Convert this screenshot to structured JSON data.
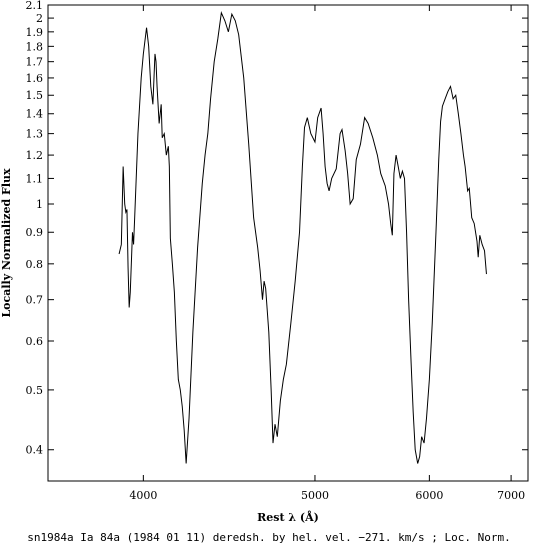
{
  "chart_data": {
    "type": "line",
    "xlabel": "Rest λ (Å)",
    "ylabel": "Locally Normalized Flux",
    "caption": "sn1984a Ia 84a (1984 01 11) deredsh. by hel. vel.  −271. km/s ;  Loc. Norm.",
    "x_scale": "reciprocal",
    "y_scale": "log",
    "xlim": [
      3600,
      7250
    ],
    "ylim": [
      0.356,
      2.1
    ],
    "x_ticks": [
      4000,
      5000,
      6000,
      7000
    ],
    "x_tick_labels": [
      "4000",
      "5000",
      "6000",
      "7000"
    ],
    "y_ticks": [
      0.4,
      0.5,
      0.6,
      0.7,
      0.8,
      0.9,
      1,
      1.1,
      1.2,
      1.3,
      1.4,
      1.5,
      1.6,
      1.7,
      1.8,
      1.9,
      2,
      2.1
    ],
    "y_tick_labels": [
      "0.4",
      "0.5",
      "0.6",
      "0.7",
      "0.8",
      "0.9",
      "1",
      "1.1",
      "1.2",
      "1.3",
      "1.4",
      "1.5",
      "1.6",
      "1.7",
      "1.8",
      "1.9",
      "2",
      "2.1"
    ],
    "series": [
      {
        "color": "#000000",
        "points": [
          [
            3890,
            0.83
          ],
          [
            3900,
            0.86
          ],
          [
            3908,
            1.15
          ],
          [
            3915,
            1.0
          ],
          [
            3920,
            0.97
          ],
          [
            3925,
            0.98
          ],
          [
            3930,
            0.79
          ],
          [
            3935,
            0.68
          ],
          [
            3940,
            0.72
          ],
          [
            3950,
            0.9
          ],
          [
            3955,
            0.86
          ],
          [
            3960,
            0.95
          ],
          [
            3975,
            1.3
          ],
          [
            3990,
            1.6
          ],
          [
            4000,
            1.75
          ],
          [
            4015,
            1.93
          ],
          [
            4025,
            1.8
          ],
          [
            4035,
            1.55
          ],
          [
            4045,
            1.45
          ],
          [
            4055,
            1.75
          ],
          [
            4060,
            1.7
          ],
          [
            4065,
            1.55
          ],
          [
            4075,
            1.35
          ],
          [
            4085,
            1.45
          ],
          [
            4090,
            1.28
          ],
          [
            4100,
            1.3
          ],
          [
            4110,
            1.2
          ],
          [
            4120,
            1.24
          ],
          [
            4125,
            1.15
          ],
          [
            4130,
            0.88
          ],
          [
            4140,
            0.8
          ],
          [
            4150,
            0.72
          ],
          [
            4160,
            0.6
          ],
          [
            4170,
            0.52
          ],
          [
            4180,
            0.5
          ],
          [
            4190,
            0.47
          ],
          [
            4200,
            0.43
          ],
          [
            4210,
            0.38
          ],
          [
            4225,
            0.45
          ],
          [
            4245,
            0.62
          ],
          [
            4270,
            0.85
          ],
          [
            4295,
            1.08
          ],
          [
            4310,
            1.2
          ],
          [
            4325,
            1.3
          ],
          [
            4340,
            1.48
          ],
          [
            4360,
            1.7
          ],
          [
            4380,
            1.85
          ],
          [
            4400,
            2.04
          ],
          [
            4420,
            1.98
          ],
          [
            4440,
            1.9
          ],
          [
            4460,
            2.03
          ],
          [
            4480,
            1.98
          ],
          [
            4500,
            1.88
          ],
          [
            4530,
            1.6
          ],
          [
            4560,
            1.25
          ],
          [
            4590,
            0.95
          ],
          [
            4615,
            0.85
          ],
          [
            4630,
            0.78
          ],
          [
            4645,
            0.7
          ],
          [
            4655,
            0.75
          ],
          [
            4665,
            0.73
          ],
          [
            4685,
            0.62
          ],
          [
            4700,
            0.5
          ],
          [
            4712,
            0.41
          ],
          [
            4725,
            0.44
          ],
          [
            4740,
            0.42
          ],
          [
            4760,
            0.48
          ],
          [
            4780,
            0.52
          ],
          [
            4800,
            0.55
          ],
          [
            4830,
            0.64
          ],
          [
            4860,
            0.75
          ],
          [
            4890,
            0.9
          ],
          [
            4910,
            1.15
          ],
          [
            4925,
            1.33
          ],
          [
            4945,
            1.38
          ],
          [
            4970,
            1.3
          ],
          [
            5000,
            1.26
          ],
          [
            5020,
            1.38
          ],
          [
            5045,
            1.43
          ],
          [
            5060,
            1.3
          ],
          [
            5075,
            1.15
          ],
          [
            5090,
            1.08
          ],
          [
            5105,
            1.05
          ],
          [
            5125,
            1.1
          ],
          [
            5160,
            1.14
          ],
          [
            5190,
            1.3
          ],
          [
            5205,
            1.32
          ],
          [
            5230,
            1.22
          ],
          [
            5250,
            1.12
          ],
          [
            5270,
            1.0
          ],
          [
            5295,
            1.02
          ],
          [
            5320,
            1.18
          ],
          [
            5355,
            1.25
          ],
          [
            5390,
            1.38
          ],
          [
            5420,
            1.35
          ],
          [
            5460,
            1.28
          ],
          [
            5500,
            1.2
          ],
          [
            5530,
            1.12
          ],
          [
            5570,
            1.07
          ],
          [
            5600,
            1.0
          ],
          [
            5620,
            0.93
          ],
          [
            5635,
            0.89
          ],
          [
            5650,
            1.12
          ],
          [
            5670,
            1.2
          ],
          [
            5690,
            1.15
          ],
          [
            5710,
            1.1
          ],
          [
            5730,
            1.13
          ],
          [
            5750,
            1.1
          ],
          [
            5770,
            0.9
          ],
          [
            5790,
            0.7
          ],
          [
            5815,
            0.55
          ],
          [
            5835,
            0.46
          ],
          [
            5855,
            0.4
          ],
          [
            5880,
            0.38
          ],
          [
            5900,
            0.39
          ],
          [
            5920,
            0.42
          ],
          [
            5945,
            0.41
          ],
          [
            5970,
            0.45
          ],
          [
            6000,
            0.52
          ],
          [
            6030,
            0.64
          ],
          [
            6070,
            0.9
          ],
          [
            6100,
            1.18
          ],
          [
            6120,
            1.36
          ],
          [
            6140,
            1.44
          ],
          [
            6170,
            1.48
          ],
          [
            6200,
            1.52
          ],
          [
            6230,
            1.55
          ],
          [
            6260,
            1.48
          ],
          [
            6290,
            1.5
          ],
          [
            6320,
            1.4
          ],
          [
            6350,
            1.3
          ],
          [
            6380,
            1.2
          ],
          [
            6400,
            1.15
          ],
          [
            6430,
            1.05
          ],
          [
            6450,
            1.06
          ],
          [
            6480,
            0.95
          ],
          [
            6510,
            0.93
          ],
          [
            6545,
            0.87
          ],
          [
            6560,
            0.82
          ],
          [
            6580,
            0.89
          ],
          [
            6610,
            0.86
          ],
          [
            6640,
            0.84
          ],
          [
            6665,
            0.77
          ]
        ]
      }
    ]
  }
}
